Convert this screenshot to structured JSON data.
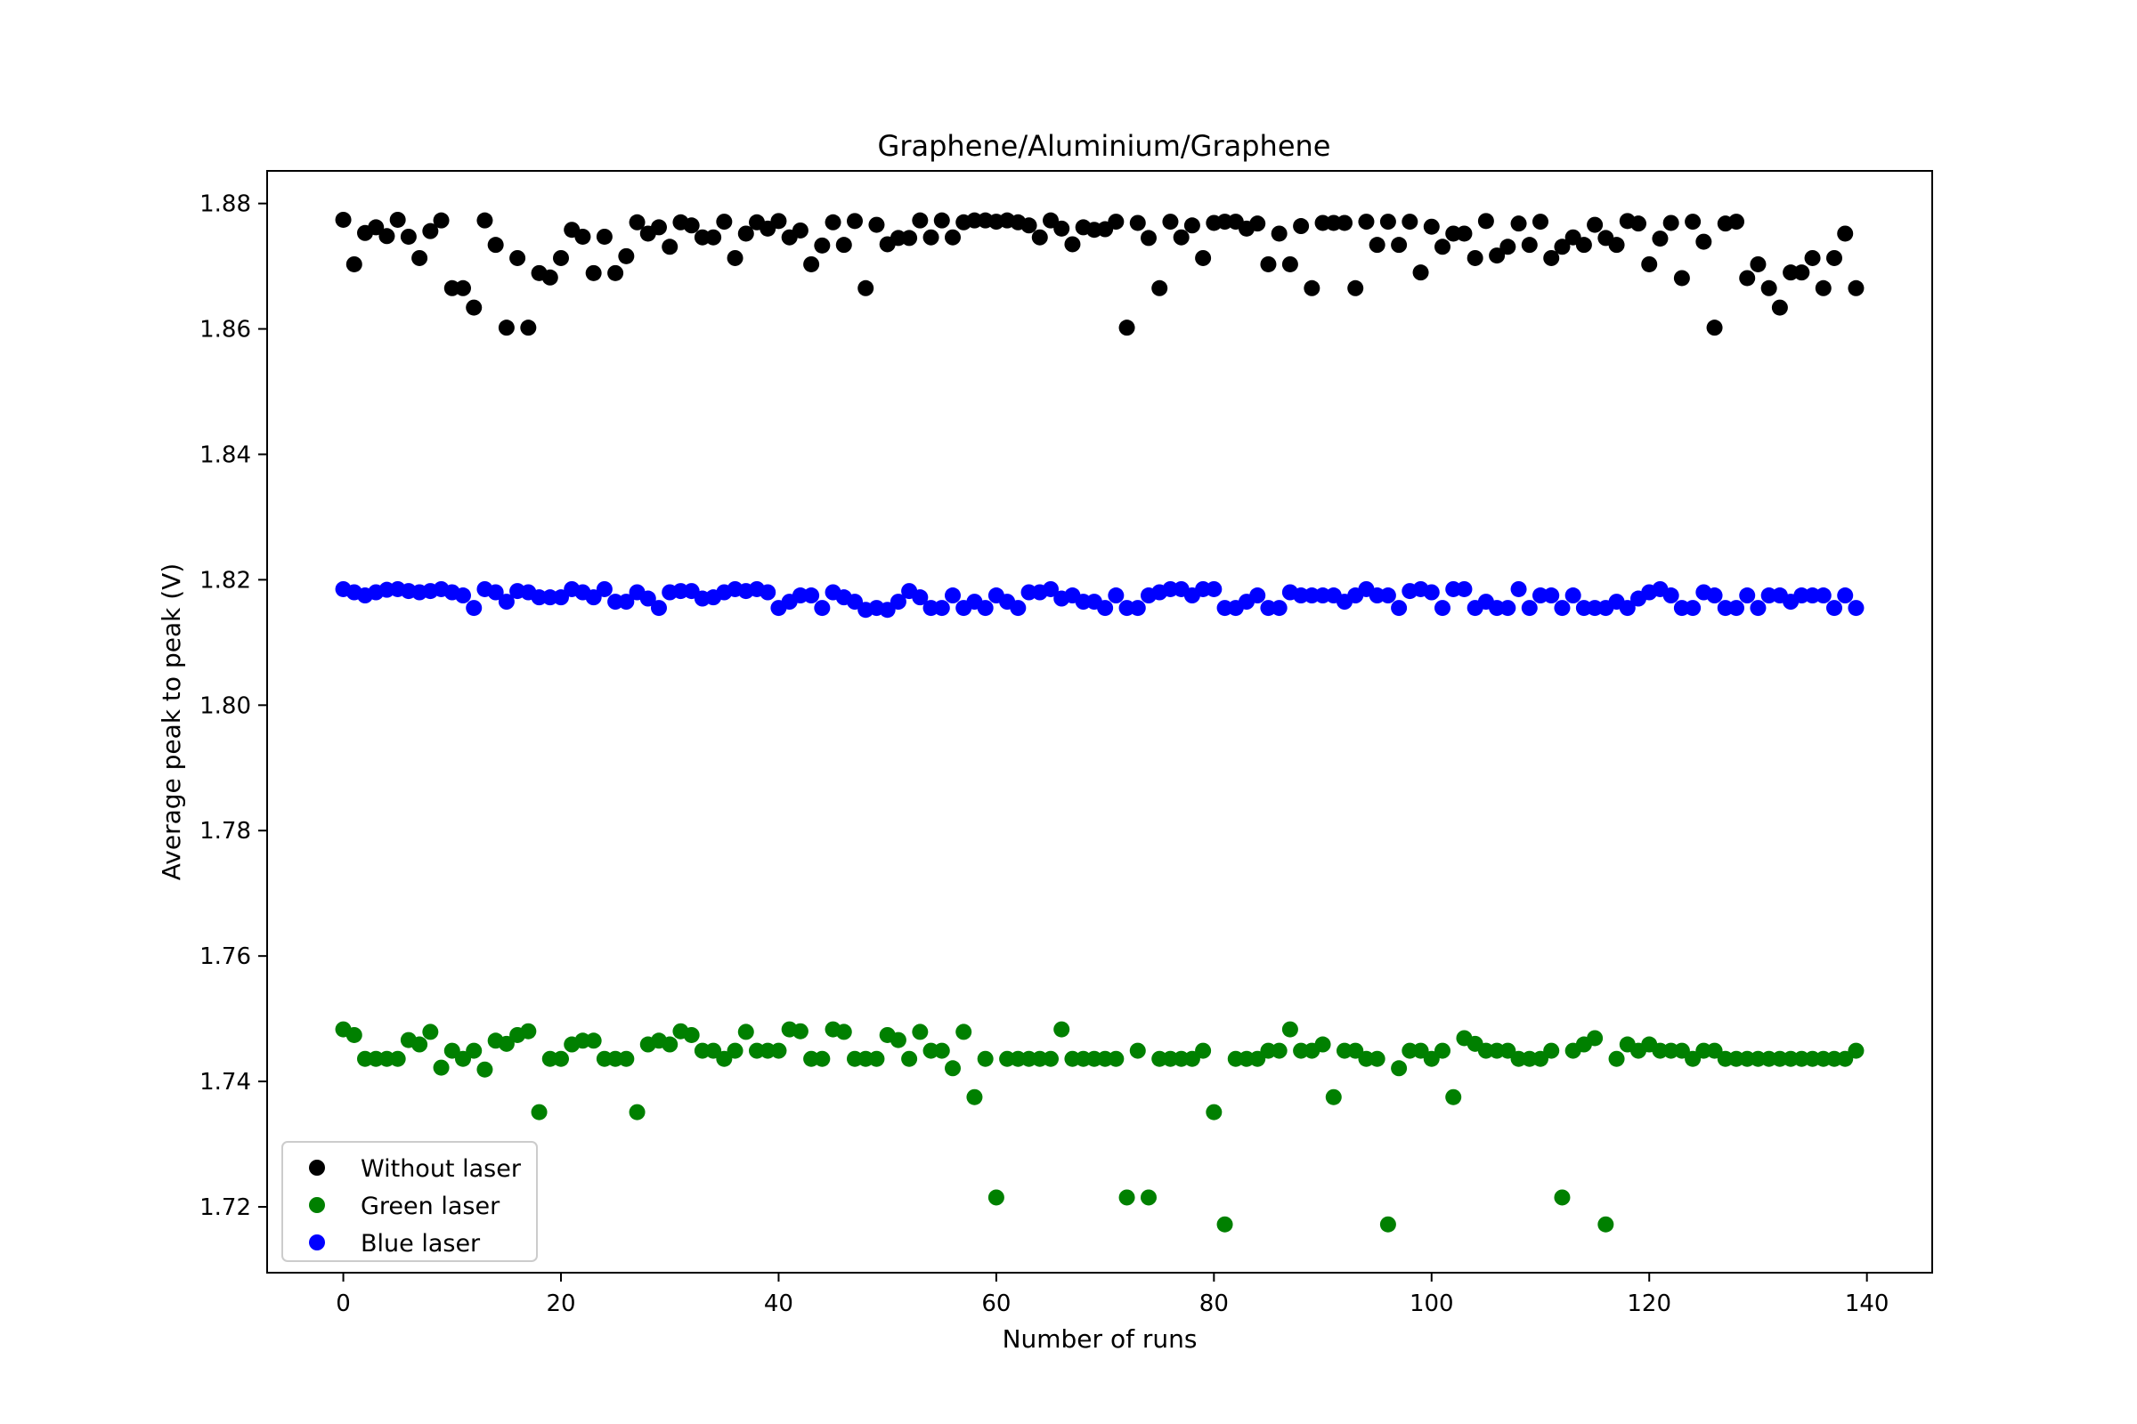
{
  "chart_data": {
    "type": "scatter",
    "title": "Graphene/Aluminium/Graphene",
    "xlabel": "Number of runs",
    "ylabel": "Average peak to peak (V)",
    "xlim": [
      -7,
      146
    ],
    "ylim": [
      1.7095,
      1.8852
    ],
    "xticks": [
      0,
      20,
      40,
      60,
      80,
      100,
      120,
      140
    ],
    "yticks": [
      1.72,
      1.74,
      1.76,
      1.78,
      1.8,
      1.82,
      1.84,
      1.86,
      1.88
    ],
    "legend": "lower-left",
    "grid": false,
    "series": [
      {
        "name": "Without laser",
        "color": "#000000",
        "x": [
          0,
          1,
          2,
          3,
          4,
          5,
          6,
          7,
          8,
          9,
          10,
          11,
          12,
          13,
          14,
          15,
          16,
          17,
          18,
          19,
          20,
          21,
          22,
          23,
          24,
          25,
          26,
          27,
          28,
          29,
          30,
          31,
          32,
          33,
          34,
          35,
          36,
          37,
          38,
          39,
          40,
          41,
          42,
          43,
          44,
          45,
          46,
          47,
          48,
          49,
          50,
          51,
          52,
          53,
          54,
          55,
          56,
          57,
          58,
          59,
          60,
          61,
          62,
          63,
          64,
          65,
          66,
          67,
          68,
          69,
          70,
          71,
          72,
          73,
          74,
          75,
          76,
          77,
          78,
          79,
          80,
          81,
          82,
          83,
          84,
          85,
          86,
          87,
          88,
          89,
          90,
          91,
          92,
          93,
          94,
          95,
          96,
          97,
          98,
          99,
          100,
          101,
          102,
          103,
          104,
          105,
          106,
          107,
          108,
          109,
          110,
          111,
          112,
          113,
          114,
          115,
          116,
          117,
          118,
          119,
          120,
          121,
          122,
          123,
          124,
          125,
          126,
          127,
          128,
          129,
          130,
          131,
          132,
          133,
          134,
          135,
          136,
          137,
          138,
          139
        ],
        "y": [
          1.8774,
          1.8703,
          1.8753,
          1.8762,
          1.8748,
          1.8774,
          1.8747,
          1.8713,
          1.8756,
          1.8773,
          1.8665,
          1.8665,
          1.8634,
          1.8773,
          1.8734,
          1.8602,
          1.8713,
          1.8602,
          1.8689,
          1.8682,
          1.8713,
          1.8758,
          1.8747,
          1.8689,
          1.8747,
          1.8689,
          1.8716,
          1.877,
          1.8752,
          1.8762,
          1.8731,
          1.877,
          1.8765,
          1.8746,
          1.8746,
          1.8771,
          1.8713,
          1.8752,
          1.877,
          1.876,
          1.8772,
          1.8746,
          1.8757,
          1.8703,
          1.8733,
          1.877,
          1.8734,
          1.8772,
          1.8665,
          1.8766,
          1.8735,
          1.8745,
          1.8745,
          1.8773,
          1.8746,
          1.8773,
          1.8746,
          1.877,
          1.8773,
          1.8773,
          1.8771,
          1.8773,
          1.877,
          1.8765,
          1.8746,
          1.8773,
          1.876,
          1.8735,
          1.8762,
          1.8758,
          1.8759,
          1.8771,
          1.8602,
          1.8769,
          1.8745,
          1.8665,
          1.8771,
          1.8746,
          1.8765,
          1.8713,
          1.8769,
          1.8771,
          1.8771,
          1.876,
          1.8768,
          1.8703,
          1.8752,
          1.8703,
          1.8764,
          1.8665,
          1.8769,
          1.8769,
          1.8769,
          1.8665,
          1.8771,
          1.8734,
          1.8771,
          1.8734,
          1.8771,
          1.869,
          1.8763,
          1.8731,
          1.8752,
          1.8752,
          1.8713,
          1.8772,
          1.8717,
          1.8731,
          1.8768,
          1.8734,
          1.8771,
          1.8713,
          1.8731,
          1.8746,
          1.8734,
          1.8766,
          1.8745,
          1.8734,
          1.8772,
          1.8768,
          1.8703,
          1.8744,
          1.8769,
          1.8681,
          1.8771,
          1.8739,
          1.8602,
          1.8768,
          1.8771,
          1.8681,
          1.8703,
          1.8665,
          1.8634,
          1.869,
          1.869,
          1.8713,
          1.8665,
          1.8713,
          1.8752,
          1.8665
        ]
      },
      {
        "name": "Green laser",
        "color": "#008000",
        "x": [
          0,
          1,
          2,
          3,
          4,
          5,
          6,
          7,
          8,
          9,
          10,
          11,
          12,
          13,
          14,
          15,
          16,
          17,
          18,
          19,
          20,
          21,
          22,
          23,
          24,
          25,
          26,
          27,
          28,
          29,
          30,
          31,
          32,
          33,
          34,
          35,
          36,
          37,
          38,
          39,
          40,
          41,
          42,
          43,
          44,
          45,
          46,
          47,
          48,
          49,
          50,
          51,
          52,
          53,
          54,
          55,
          56,
          57,
          58,
          59,
          60,
          61,
          62,
          63,
          64,
          65,
          66,
          67,
          68,
          69,
          70,
          71,
          72,
          73,
          74,
          75,
          76,
          77,
          78,
          79,
          80,
          81,
          82,
          83,
          84,
          85,
          86,
          87,
          88,
          89,
          90,
          91,
          92,
          93,
          94,
          95,
          96,
          97,
          98,
          99,
          100,
          101,
          102,
          103,
          104,
          105,
          106,
          107,
          108,
          109,
          110,
          111,
          112,
          113,
          114,
          115,
          116,
          117,
          118,
          119,
          120,
          121,
          122,
          123,
          124,
          125,
          126,
          127,
          128,
          129,
          130,
          131,
          132,
          133,
          134,
          135,
          136,
          137,
          138,
          139
        ],
        "y": [
          1.7483,
          1.7474,
          1.7436,
          1.7436,
          1.7436,
          1.7436,
          1.7466,
          1.7459,
          1.7479,
          1.7422,
          1.7449,
          1.7436,
          1.7449,
          1.7419,
          1.7465,
          1.746,
          1.7474,
          1.748,
          1.7351,
          1.7436,
          1.7436,
          1.7459,
          1.7465,
          1.7465,
          1.7436,
          1.7436,
          1.7436,
          1.7351,
          1.7459,
          1.7465,
          1.7459,
          1.748,
          1.7474,
          1.7449,
          1.7449,
          1.7436,
          1.7449,
          1.7479,
          1.7449,
          1.7449,
          1.7449,
          1.7483,
          1.748,
          1.7436,
          1.7436,
          1.7483,
          1.7479,
          1.7436,
          1.7436,
          1.7436,
          1.7474,
          1.7466,
          1.7436,
          1.7479,
          1.7449,
          1.7449,
          1.7421,
          1.7479,
          1.7375,
          1.7436,
          1.7215,
          1.7436,
          1.7436,
          1.7436,
          1.7436,
          1.7436,
          1.7483,
          1.7436,
          1.7436,
          1.7436,
          1.7436,
          1.7436,
          1.7215,
          1.7449,
          1.7215,
          1.7436,
          1.7436,
          1.7436,
          1.7436,
          1.7449,
          1.7351,
          1.7172,
          1.7436,
          1.7436,
          1.7436,
          1.7449,
          1.7449,
          1.7483,
          1.7449,
          1.7449,
          1.7459,
          1.7375,
          1.7449,
          1.7449,
          1.7436,
          1.7436,
          1.7172,
          1.7421,
          1.7449,
          1.7449,
          1.7436,
          1.7449,
          1.7375,
          1.7469,
          1.746,
          1.7449,
          1.7449,
          1.7449,
          1.7436,
          1.7436,
          1.7436,
          1.7449,
          1.7215,
          1.7449,
          1.7459,
          1.7469,
          1.7172,
          1.7436,
          1.7459,
          1.7449,
          1.7459,
          1.7449,
          1.7449,
          1.7449,
          1.7436,
          1.7449,
          1.7449,
          1.7436,
          1.7436,
          1.7436,
          1.7436,
          1.7436,
          1.7436,
          1.7436,
          1.7436,
          1.7436,
          1.7436,
          1.7436,
          1.7436,
          1.7449
        ]
      },
      {
        "name": "Blue laser",
        "color": "#0000ff",
        "x": [
          0,
          1,
          2,
          3,
          4,
          5,
          6,
          7,
          8,
          9,
          10,
          11,
          12,
          13,
          14,
          15,
          16,
          17,
          18,
          19,
          20,
          21,
          22,
          23,
          24,
          25,
          26,
          27,
          28,
          29,
          30,
          31,
          32,
          33,
          34,
          35,
          36,
          37,
          38,
          39,
          40,
          41,
          42,
          43,
          44,
          45,
          46,
          47,
          48,
          49,
          50,
          51,
          52,
          53,
          54,
          55,
          56,
          57,
          58,
          59,
          60,
          61,
          62,
          63,
          64,
          65,
          66,
          67,
          68,
          69,
          70,
          71,
          72,
          73,
          74,
          75,
          76,
          77,
          78,
          79,
          80,
          81,
          82,
          83,
          84,
          85,
          86,
          87,
          88,
          89,
          90,
          91,
          92,
          93,
          94,
          95,
          96,
          97,
          98,
          99,
          100,
          101,
          102,
          103,
          104,
          105,
          106,
          107,
          108,
          109,
          110,
          111,
          112,
          113,
          114,
          115,
          116,
          117,
          118,
          119,
          120,
          121,
          122,
          123,
          124,
          125,
          126,
          127,
          128,
          129,
          130,
          131,
          132,
          133,
          134,
          135,
          136,
          137,
          138,
          139
        ],
        "y": [
          1.8185,
          1.818,
          1.8175,
          1.818,
          1.8184,
          1.8185,
          1.8182,
          1.818,
          1.8182,
          1.8185,
          1.818,
          1.8175,
          1.8155,
          1.8185,
          1.818,
          1.8165,
          1.8182,
          1.818,
          1.8172,
          1.8172,
          1.8172,
          1.8185,
          1.818,
          1.8172,
          1.8185,
          1.8165,
          1.8165,
          1.818,
          1.817,
          1.8155,
          1.818,
          1.8182,
          1.8182,
          1.817,
          1.8172,
          1.818,
          1.8185,
          1.8182,
          1.8185,
          1.818,
          1.8155,
          1.8165,
          1.8175,
          1.8175,
          1.8155,
          1.818,
          1.8172,
          1.8165,
          1.8152,
          1.8155,
          1.8152,
          1.8165,
          1.8182,
          1.8172,
          1.8155,
          1.8155,
          1.8175,
          1.8155,
          1.8165,
          1.8155,
          1.8175,
          1.8165,
          1.8155,
          1.818,
          1.818,
          1.8185,
          1.817,
          1.8175,
          1.8165,
          1.8165,
          1.8155,
          1.8175,
          1.8155,
          1.8155,
          1.8175,
          1.818,
          1.8185,
          1.8185,
          1.8175,
          1.8185,
          1.8185,
          1.8155,
          1.8155,
          1.8165,
          1.8175,
          1.8155,
          1.8155,
          1.818,
          1.8175,
          1.8175,
          1.8175,
          1.8175,
          1.8165,
          1.8175,
          1.8185,
          1.8175,
          1.8175,
          1.8155,
          1.8182,
          1.8185,
          1.818,
          1.8155,
          1.8185,
          1.8185,
          1.8155,
          1.8165,
          1.8155,
          1.8155,
          1.8185,
          1.8155,
          1.8175,
          1.8175,
          1.8155,
          1.8175,
          1.8155,
          1.8155,
          1.8155,
          1.8165,
          1.8155,
          1.817,
          1.818,
          1.8185,
          1.8175,
          1.8155,
          1.8155,
          1.818,
          1.8175,
          1.8155,
          1.8155,
          1.8175,
          1.8155,
          1.8175,
          1.8175,
          1.8165,
          1.8175,
          1.8175,
          1.8175,
          1.8155,
          1.8175,
          1.8155
        ]
      }
    ]
  }
}
